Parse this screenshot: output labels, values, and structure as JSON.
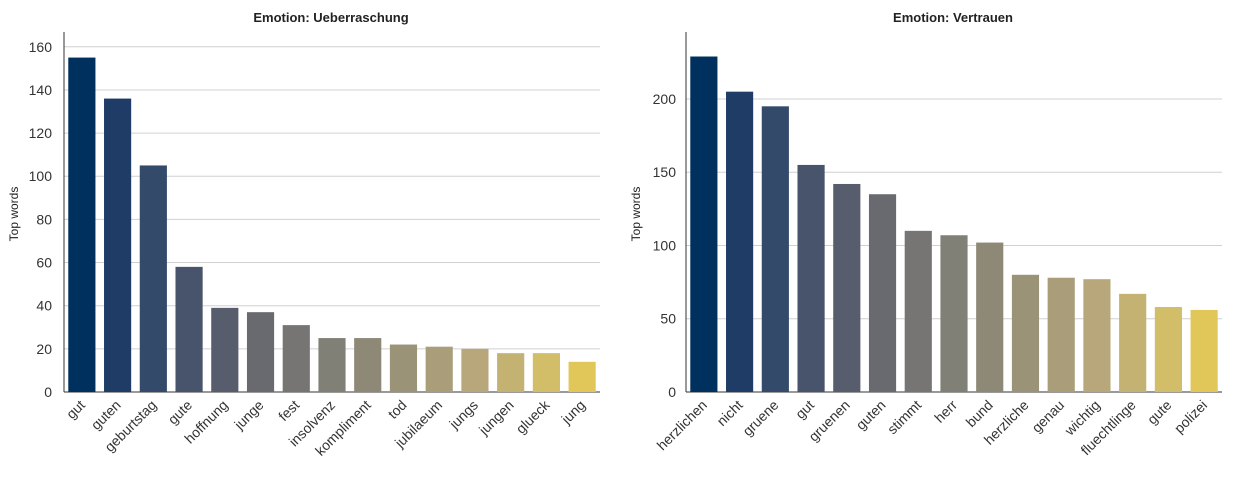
{
  "chart_data": [
    {
      "type": "bar",
      "title": "Emotion: Ueberraschung",
      "xlabel": "",
      "ylabel": "Top words",
      "ylim": [
        0,
        165
      ],
      "yticks": [
        0,
        20,
        40,
        60,
        80,
        100,
        120,
        140,
        160
      ],
      "grid": true,
      "categories": [
        "gut",
        "guten",
        "geburtstag",
        "gute",
        "hoffnung",
        "junge",
        "fest",
        "insolvenz",
        "kompliment",
        "tod",
        "jubilaeum",
        "jungs",
        "jungen",
        "glueck",
        "jung"
      ],
      "values": [
        155,
        136,
        105,
        58,
        39,
        37,
        31,
        25,
        25,
        22,
        21,
        20,
        18,
        18,
        14
      ],
      "colors": [
        "#00305e",
        "#1f3c67",
        "#334a6a",
        "#48546b",
        "#585d6e",
        "#696a70",
        "#767574",
        "#818076",
        "#8e8876",
        "#9b9378",
        "#a99d7a",
        "#b7a77a",
        "#c4b273",
        "#d2bd68",
        "#e1c75a"
      ]
    },
    {
      "type": "bar",
      "title": "Emotion: Vertrauen",
      "xlabel": "",
      "ylabel": "Top words",
      "ylim": [
        0,
        243
      ],
      "yticks": [
        0,
        50,
        100,
        150,
        200
      ],
      "grid": true,
      "categories": [
        "herzlichen",
        "nicht",
        "gruene",
        "gut",
        "gruenen",
        "guten",
        "stimmt",
        "herr",
        "bund",
        "herzliche",
        "genau",
        "wichtig",
        "fluechtlinge",
        "gute",
        "polizei"
      ],
      "values": [
        229,
        205,
        195,
        155,
        142,
        135,
        110,
        107,
        102,
        80,
        78,
        77,
        67,
        58,
        56
      ],
      "colors": [
        "#00305e",
        "#1f3c67",
        "#334a6a",
        "#48546b",
        "#585d6e",
        "#696a70",
        "#767574",
        "#818076",
        "#8e8876",
        "#9b9378",
        "#a99d7a",
        "#b7a77a",
        "#c4b273",
        "#d2bd68",
        "#e1c75a"
      ]
    }
  ]
}
